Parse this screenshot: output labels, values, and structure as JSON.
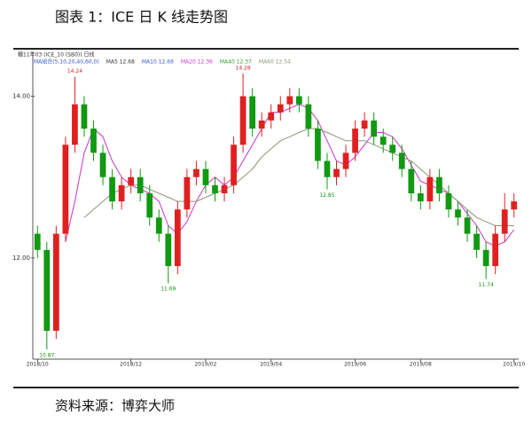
{
  "title": "图表 1：ICE 日 K 线走势图",
  "source": "资料来源：博弈大师",
  "chart_data": {
    "type": "candlestick",
    "instrument": "糖11年03 (ICE_10 (SB0)) 日线",
    "legend_texts": [
      {
        "text": "MA组合(5,10,20,40,60,0)",
        "color": "#3355cc"
      },
      {
        "text": "MA5 12.68",
        "color": "#333333"
      },
      {
        "text": "MA10 12.69",
        "color": "#3355cc"
      },
      {
        "text": "MA20 12.36",
        "color": "#cc33cc"
      },
      {
        "text": "MA40 12.37",
        "color": "#339933"
      },
      {
        "text": "MA60 12.54",
        "color": "#889977"
      }
    ],
    "categories": [
      "2018/10",
      null,
      null,
      null,
      null,
      null,
      null,
      null,
      null,
      null,
      "2018/12",
      null,
      null,
      null,
      null,
      null,
      null,
      null,
      "2019/02",
      null,
      null,
      null,
      null,
      null,
      null,
      "2019/04",
      null,
      null,
      null,
      null,
      null,
      null,
      null,
      null,
      "2019/06",
      null,
      null,
      null,
      null,
      null,
      null,
      "2019/08",
      null,
      null,
      null,
      null,
      null,
      null,
      null,
      null,
      null,
      "2019/10"
    ],
    "open": [
      12.3,
      12.1,
      11.1,
      12.3,
      13.4,
      13.9,
      13.6,
      13.3,
      13.0,
      12.7,
      12.9,
      13.0,
      12.8,
      12.5,
      12.3,
      11.9,
      12.6,
      13.0,
      13.1,
      12.9,
      12.8,
      12.9,
      13.4,
      14.0,
      13.6,
      13.7,
      13.8,
      13.9,
      14.0,
      13.9,
      13.6,
      13.2,
      13.0,
      13.1,
      13.3,
      13.6,
      13.7,
      13.5,
      13.4,
      13.3,
      13.1,
      12.8,
      12.7,
      13.0,
      12.8,
      12.6,
      12.5,
      12.3,
      12.1,
      11.9,
      12.3,
      12.6
    ],
    "high": [
      12.4,
      12.2,
      12.4,
      13.5,
      14.24,
      14.0,
      13.7,
      13.4,
      13.1,
      13.0,
      13.1,
      13.1,
      12.9,
      12.6,
      12.4,
      12.7,
      13.1,
      13.2,
      13.2,
      13.0,
      13.0,
      13.5,
      14.28,
      14.1,
      13.8,
      13.9,
      14.0,
      14.1,
      14.1,
      14.0,
      13.7,
      13.3,
      13.2,
      13.4,
      13.7,
      13.8,
      13.8,
      13.6,
      13.5,
      13.4,
      13.2,
      12.9,
      13.1,
      13.1,
      12.9,
      12.7,
      12.6,
      12.4,
      12.2,
      12.4,
      12.8,
      12.8
    ],
    "low": [
      12.0,
      10.87,
      11.0,
      12.2,
      13.3,
      13.5,
      13.2,
      12.9,
      12.6,
      12.6,
      12.8,
      12.7,
      12.4,
      12.2,
      11.69,
      11.8,
      12.5,
      12.9,
      12.8,
      12.7,
      12.7,
      12.8,
      13.3,
      13.5,
      13.5,
      13.6,
      13.7,
      13.8,
      13.8,
      13.5,
      13.1,
      12.85,
      12.9,
      13.0,
      13.2,
      13.5,
      13.4,
      13.3,
      13.2,
      13.0,
      12.7,
      12.6,
      12.6,
      12.7,
      12.5,
      12.4,
      12.2,
      12.0,
      11.74,
      11.8,
      12.2,
      12.5
    ],
    "close": [
      12.1,
      11.1,
      12.3,
      13.4,
      13.9,
      13.6,
      13.3,
      13.0,
      12.7,
      12.9,
      13.0,
      12.8,
      12.5,
      12.3,
      11.9,
      12.6,
      13.0,
      13.1,
      12.9,
      12.8,
      12.9,
      13.4,
      14.0,
      13.6,
      13.7,
      13.8,
      13.9,
      14.0,
      13.9,
      13.6,
      13.2,
      13.0,
      13.1,
      13.3,
      13.6,
      13.7,
      13.5,
      13.4,
      13.3,
      13.1,
      12.8,
      12.7,
      13.0,
      12.8,
      12.6,
      12.5,
      12.3,
      12.1,
      11.9,
      12.3,
      12.6,
      12.7
    ],
    "up_color": "#e02020",
    "down_color": "#119911",
    "annotation_color": "#e02020",
    "annotation_low_color": "#119911",
    "series": [
      {
        "color": "#cc33cc",
        "values": [
          null,
          null,
          null,
          12.2,
          12.7,
          13.3,
          13.6,
          13.5,
          13.2,
          13.0,
          12.9,
          12.85,
          12.8,
          12.7,
          12.4,
          12.3,
          12.45,
          12.7,
          12.9,
          13.0,
          12.9,
          13.0,
          13.2,
          13.4,
          13.6,
          13.8,
          13.8,
          13.85,
          13.9,
          13.85,
          13.7,
          13.45,
          13.2,
          13.15,
          13.25,
          13.4,
          13.55,
          13.55,
          13.5,
          13.35,
          13.15,
          12.95,
          12.9,
          12.85,
          12.8,
          12.7,
          12.55,
          12.4,
          12.2,
          12.15,
          12.2,
          12.35
        ]
      },
      {
        "color": "#889977",
        "values": [
          null,
          null,
          null,
          null,
          null,
          12.5,
          12.6,
          12.7,
          12.8,
          12.85,
          12.9,
          12.9,
          12.85,
          12.8,
          12.75,
          12.7,
          12.7,
          12.7,
          12.75,
          12.8,
          12.85,
          12.9,
          13.0,
          13.1,
          13.25,
          13.35,
          13.45,
          13.5,
          13.55,
          13.6,
          13.6,
          13.55,
          13.5,
          13.45,
          13.45,
          13.45,
          13.4,
          13.35,
          13.3,
          13.25,
          13.2,
          13.1,
          13.0,
          12.9,
          12.8,
          12.7,
          12.6,
          12.5,
          12.45,
          12.4,
          12.4,
          12.4
        ]
      }
    ],
    "ylim": [
      10.75,
      14.4
    ],
    "yticks": [
      {
        "value": 12,
        "label": "12.00"
      },
      {
        "value": 14,
        "label": "14.00"
      }
    ]
  }
}
